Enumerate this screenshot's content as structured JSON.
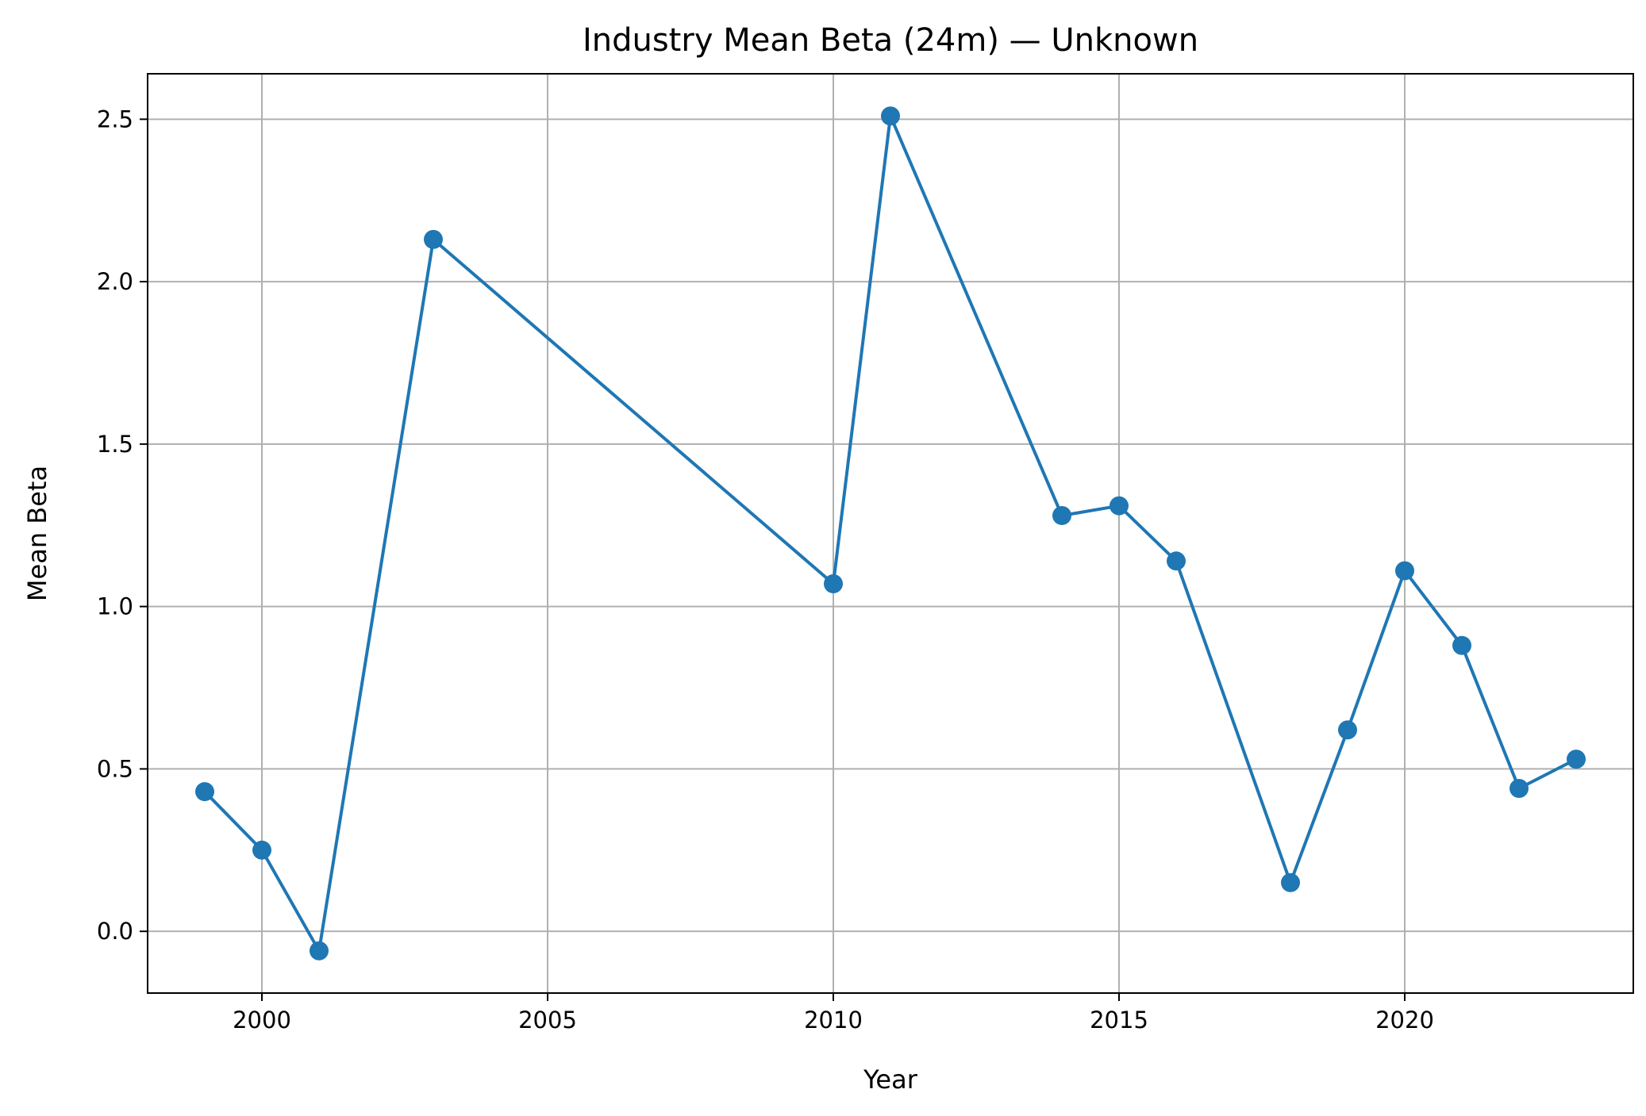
{
  "chart_data": {
    "type": "line",
    "title": "Industry Mean Beta (24m) — Unknown",
    "xlabel": "Year",
    "ylabel": "Mean Beta",
    "xlim": [
      1998,
      2024
    ],
    "ylim": [
      -0.19,
      2.64
    ],
    "grid": true,
    "x_ticks": [
      2000,
      2005,
      2010,
      2015,
      2020
    ],
    "y_ticks": [
      0.0,
      0.5,
      1.0,
      1.5,
      2.0,
      2.5
    ],
    "series": [
      {
        "color": "#1f77b4",
        "marker": "circle",
        "x": [
          1999,
          2000,
          2001,
          2003,
          2010,
          2011,
          2014,
          2015,
          2016,
          2018,
          2019,
          2020,
          2021,
          2022,
          2023
        ],
        "y": [
          0.43,
          0.25,
          -0.06,
          2.13,
          1.07,
          2.51,
          1.28,
          1.31,
          1.14,
          0.15,
          0.62,
          1.11,
          0.88,
          0.44,
          0.53
        ]
      }
    ],
    "colors": {
      "grid": "#b0b0b0",
      "axes": "#000000"
    }
  }
}
